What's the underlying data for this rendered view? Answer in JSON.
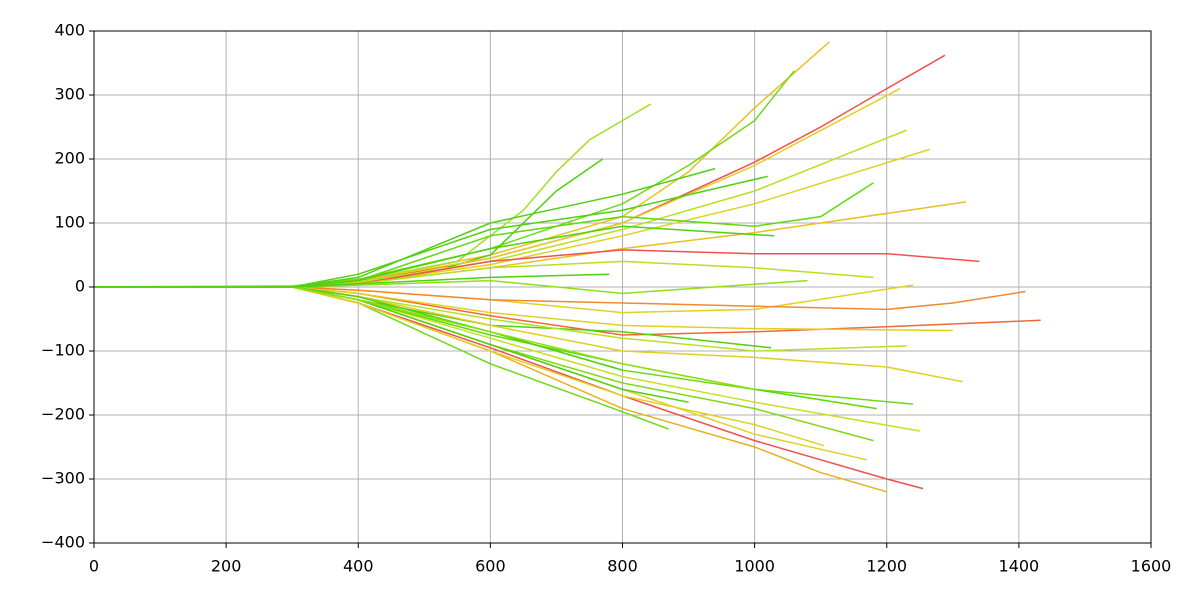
{
  "chart_data": {
    "type": "line",
    "grid": true,
    "xlim": [
      0,
      1600
    ],
    "xticks": [
      0,
      200,
      400,
      600,
      800,
      1000,
      1200,
      1400,
      1600
    ],
    "ylim": [
      -400,
      400
    ],
    "yticks": [
      {
        "value": -400,
        "label": "−400"
      },
      {
        "value": -300,
        "label": "−300"
      },
      {
        "value": -200,
        "label": "−200"
      },
      {
        "value": -100,
        "label": "−100"
      },
      0,
      100,
      200,
      300,
      400
    ],
    "series": [
      {
        "color": "#f05050",
        "x": [
          0,
          300,
          400,
          600,
          800,
          1000,
          1100,
          1200,
          1288
        ],
        "values": [
          0,
          0,
          8,
          45,
          100,
          195,
          250,
          310,
          362
        ]
      },
      {
        "color": "#e8c020",
        "x": [
          0,
          300,
          400,
          600,
          800,
          900,
          1000,
          1113
        ],
        "values": [
          0,
          0,
          10,
          50,
          110,
          180,
          280,
          383
        ]
      },
      {
        "color": "#70d818",
        "x": [
          0,
          300,
          400,
          600,
          800,
          900,
          1000,
          1060
        ],
        "values": [
          0,
          0,
          12,
          60,
          130,
          190,
          260,
          338
        ]
      },
      {
        "color": "#a0e020",
        "x": [
          0,
          300,
          400,
          550,
          650,
          700,
          750,
          843
        ],
        "values": [
          0,
          2,
          10,
          40,
          120,
          180,
          230,
          286
        ]
      },
      {
        "color": "#50d010",
        "x": [
          0,
          300,
          400,
          500,
          600,
          700,
          770
        ],
        "values": [
          0,
          0,
          5,
          20,
          50,
          150,
          200
        ]
      },
      {
        "color": "#50d010",
        "x": [
          0,
          300,
          400,
          600,
          800,
          940
        ],
        "values": [
          0,
          0,
          15,
          100,
          145,
          185
        ]
      },
      {
        "color": "#e0d020",
        "x": [
          0,
          300,
          400,
          600,
          800,
          1000,
          1220
        ],
        "values": [
          0,
          0,
          10,
          45,
          100,
          190,
          310
        ]
      },
      {
        "color": "#b8e020",
        "x": [
          0,
          300,
          400,
          600,
          800,
          1000,
          1230
        ],
        "values": [
          0,
          0,
          8,
          40,
          90,
          150,
          245
        ]
      },
      {
        "color": "#e0d020",
        "x": [
          0,
          300,
          400,
          600,
          800,
          1000,
          1265
        ],
        "values": [
          0,
          0,
          6,
          35,
          80,
          130,
          215
        ]
      },
      {
        "color": "#e8c020",
        "x": [
          0,
          300,
          400,
          600,
          800,
          1000,
          1320
        ],
        "values": [
          0,
          0,
          5,
          30,
          60,
          85,
          133
        ]
      },
      {
        "color": "#f05050",
        "x": [
          0,
          300,
          400,
          600,
          800,
          1000,
          1200,
          1340
        ],
        "values": [
          0,
          0,
          5,
          40,
          58,
          52,
          52,
          40
        ]
      },
      {
        "color": "#60d810",
        "x": [
          0,
          300,
          400,
          600,
          800,
          1000,
          1100,
          1180
        ],
        "values": [
          0,
          0,
          10,
          80,
          110,
          95,
          110,
          163
        ]
      },
      {
        "color": "#50d010",
        "x": [
          0,
          300,
          400,
          600,
          800,
          1020
        ],
        "values": [
          0,
          0,
          20,
          90,
          120,
          173
        ]
      },
      {
        "color": "#b8e020",
        "x": [
          0,
          300,
          400,
          600,
          800,
          1000,
          1180
        ],
        "values": [
          0,
          0,
          5,
          30,
          40,
          30,
          15
        ]
      },
      {
        "color": "#50d010",
        "x": [
          0,
          300,
          400,
          600,
          800,
          1030
        ],
        "values": [
          0,
          0,
          10,
          60,
          95,
          80
        ]
      },
      {
        "color": "#90e010",
        "x": [
          0,
          300,
          400,
          600,
          800,
          1080
        ],
        "values": [
          0,
          0,
          3,
          10,
          -10,
          10
        ]
      },
      {
        "color": "#e0d020",
        "x": [
          0,
          300,
          400,
          600,
          800,
          1000,
          1240
        ],
        "values": [
          0,
          0,
          -5,
          -20,
          -40,
          -35,
          3
        ]
      },
      {
        "color": "#f08a30",
        "x": [
          0,
          300,
          400,
          600,
          800,
          1000,
          1200,
          1300,
          1410
        ],
        "values": [
          0,
          0,
          -5,
          -20,
          -25,
          -30,
          -35,
          -25,
          -7
        ]
      },
      {
        "color": "#f06838",
        "x": [
          0,
          300,
          400,
          600,
          800,
          1000,
          1200,
          1433
        ],
        "values": [
          0,
          0,
          -10,
          -45,
          -75,
          -70,
          -62,
          -52
        ]
      },
      {
        "color": "#e0d020",
        "x": [
          0,
          300,
          400,
          600,
          800,
          1000,
          1300
        ],
        "values": [
          0,
          0,
          -10,
          -40,
          -60,
          -65,
          -68
        ]
      },
      {
        "color": "#50d010",
        "x": [
          0,
          300,
          400,
          600,
          800,
          1025
        ],
        "values": [
          0,
          0,
          -20,
          -60,
          -70,
          -95
        ]
      },
      {
        "color": "#e0d020",
        "x": [
          0,
          300,
          400,
          600,
          800,
          1000,
          1200,
          1315
        ],
        "values": [
          0,
          0,
          -15,
          -60,
          -100,
          -110,
          -125,
          -148
        ]
      },
      {
        "color": "#70d818",
        "x": [
          0,
          300,
          400,
          600,
          800,
          1000,
          1240
        ],
        "values": [
          0,
          0,
          -20,
          -70,
          -130,
          -160,
          -183
        ]
      },
      {
        "color": "#c8e020",
        "x": [
          0,
          300,
          400,
          600,
          800,
          1000,
          1250
        ],
        "values": [
          0,
          0,
          -20,
          -80,
          -140,
          -180,
          -225
        ]
      },
      {
        "color": "#e8b020",
        "x": [
          0,
          300,
          400,
          600,
          800,
          1000,
          1100,
          1200
        ],
        "values": [
          0,
          0,
          -25,
          -100,
          -190,
          -250,
          -290,
          -320
        ]
      },
      {
        "color": "#f05050",
        "x": [
          0,
          300,
          400,
          600,
          800,
          1000,
          1200,
          1255
        ],
        "values": [
          0,
          0,
          -25,
          -95,
          -170,
          -240,
          -300,
          -315
        ]
      },
      {
        "color": "#e0d020",
        "x": [
          0,
          300,
          400,
          600,
          800,
          1000,
          1170
        ],
        "values": [
          0,
          0,
          -20,
          -90,
          -160,
          -230,
          -270
        ]
      },
      {
        "color": "#70d818",
        "x": [
          0,
          300,
          400,
          600,
          800,
          870
        ],
        "values": [
          0,
          0,
          -25,
          -120,
          -195,
          -222
        ]
      },
      {
        "color": "#80d818",
        "x": [
          0,
          300,
          400,
          600,
          800,
          1000,
          1180
        ],
        "values": [
          0,
          0,
          -20,
          -90,
          -150,
          -190,
          -240
        ]
      },
      {
        "color": "#b8e020",
        "x": [
          0,
          300,
          400,
          600,
          800,
          1000,
          1230
        ],
        "values": [
          0,
          0,
          -15,
          -50,
          -80,
          -100,
          -92
        ]
      },
      {
        "color": "#60d810",
        "x": [
          0,
          300,
          400,
          600,
          800,
          1000,
          1185
        ],
        "values": [
          0,
          0,
          -20,
          -75,
          -120,
          -160,
          -190
        ]
      },
      {
        "color": "#e0d020",
        "x": [
          0,
          300,
          400,
          600,
          800,
          1000,
          1105
        ],
        "values": [
          0,
          0,
          -25,
          -100,
          -170,
          -215,
          -248
        ]
      },
      {
        "color": "#50d010",
        "x": [
          0,
          300,
          400,
          600,
          800,
          900
        ],
        "values": [
          0,
          0,
          -20,
          -90,
          -160,
          -180
        ]
      },
      {
        "color": "#50d010",
        "x": [
          0,
          300,
          400,
          600,
          800
        ],
        "values": [
          0,
          0,
          -15,
          -70,
          -130
        ]
      },
      {
        "color": "#90e010",
        "x": [
          0,
          300,
          400,
          600,
          800,
          1000
        ],
        "values": [
          0,
          0,
          -20,
          -70,
          -120,
          -160
        ]
      },
      {
        "color": "#50d010",
        "x": [
          0,
          300,
          400,
          600,
          780
        ],
        "values": [
          0,
          0,
          5,
          15,
          20
        ]
      }
    ]
  }
}
